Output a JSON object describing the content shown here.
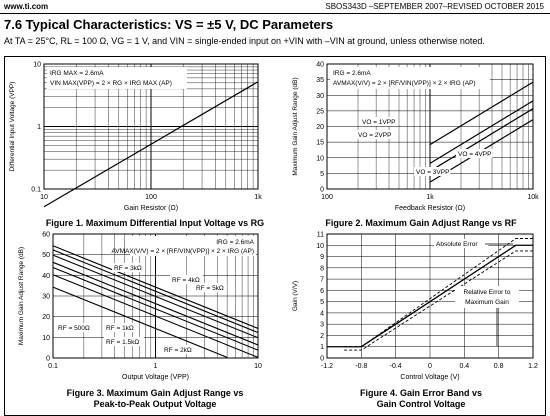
{
  "header": {
    "site": "www.ti.com",
    "doc": "SBOS343D –SEPTEMBER 2007–REVISED OCTOBER 2015"
  },
  "section": {
    "title": "7.6   Typical Characteristics: VS = ±5 V, DC Parameters",
    "conditions": "At TA = 25°C, RL = 100 Ω, VG = 1 V, and VIN = single-ended input on +VIN with –VIN at ground, unless otherwise noted."
  },
  "chart_data": [
    {
      "type": "line",
      "title": "Figure 1. Maximum Differential Input Voltage vs RG",
      "xlabel": "Gain Resistor (Ω)",
      "ylabel": "Differential Input Voltage (VPP)",
      "xscale": "log",
      "yscale": "log",
      "xlim": [
        10,
        1000
      ],
      "ylim": [
        0.1,
        10
      ],
      "xticks": [
        "10",
        "100",
        "1k"
      ],
      "yticks": [
        "10",
        "1",
        "0.1"
      ],
      "annotations": [
        "IRG MAX = 2.6mA",
        "VIN MAX(VPP) = 2 × RG × IRG MAX (AP)"
      ],
      "series": [
        {
          "x": [
            10,
            1000
          ],
          "y": [
            0.052,
            5.2
          ]
        }
      ]
    },
    {
      "type": "line",
      "title": "Figure 2. Maximum Gain Adjust Range vs RF",
      "xlabel": "Feedback Resistor (Ω)",
      "ylabel": "Maximum Gain Adjust Range (dB)",
      "xscale": "log",
      "xlim": [
        100,
        10000
      ],
      "ylim": [
        0,
        40
      ],
      "xticks": [
        "100",
        "1k",
        "10k"
      ],
      "yticks": [
        "40",
        "35",
        "30",
        "25",
        "20",
        "15",
        "10",
        "5",
        "0"
      ],
      "annotations": [
        "IRG = 2.6mA",
        "AVMAX(V/V) = 2 × [RF/VIN(VPP)] × 2 × IRG (AP)"
      ],
      "series": [
        {
          "name": "VO = 1VPP",
          "x": [
            1000,
            10000
          ],
          "y": [
            14.2,
            34.2
          ]
        },
        {
          "name": "VO = 2VPP",
          "x": [
            1000,
            10000
          ],
          "y": [
            8.2,
            28.2
          ]
        },
        {
          "name": "VO = 4VPP",
          "x": [
            1000,
            10000
          ],
          "y": [
            2.2,
            22.2
          ]
        },
        {
          "name": "VO = 3VPP",
          "x": [
            1000,
            10000
          ],
          "y": [
            5.7,
            25.7
          ]
        }
      ]
    },
    {
      "type": "line",
      "title": "Figure 3. Maximum Gain Adjust Range vs\nPeak-to-Peak Output Voltage",
      "xlabel": "Output Voltage (VPP)",
      "ylabel": "Maximum Gain Adjust Range (dB)",
      "xscale": "log",
      "xlim": [
        0.1,
        10
      ],
      "ylim": [
        0,
        60
      ],
      "xticks": [
        "0.1",
        "1",
        "10"
      ],
      "yticks": [
        "60",
        "50",
        "40",
        "30",
        "20",
        "10",
        "0"
      ],
      "annotations": [
        "IRG = 2.6mA",
        "AVMAX(V/V) = 2 × [RF/VIN(VPP)] × 2 × IRG (AP)"
      ],
      "series": [
        {
          "name": "RF = 5kΩ",
          "x": [
            0.1,
            10
          ],
          "y": [
            54.3,
            14.3
          ]
        },
        {
          "name": "RF = 4kΩ",
          "x": [
            0.1,
            10
          ],
          "y": [
            52.3,
            12.3
          ]
        },
        {
          "name": "RF = 3kΩ",
          "x": [
            0.1,
            10
          ],
          "y": [
            49.8,
            9.8
          ]
        },
        {
          "name": "RF = 2kΩ",
          "x": [
            0.1,
            10
          ],
          "y": [
            46.3,
            6.3
          ]
        },
        {
          "name": "RF = 1.5kΩ",
          "x": [
            0.1,
            10
          ],
          "y": [
            43.8,
            3.8
          ]
        },
        {
          "name": "RF = 1kΩ",
          "x": [
            0.1,
            10
          ],
          "y": [
            40.3,
            0.3
          ]
        },
        {
          "name": "RF = 500Ω",
          "x": [
            0.1,
            5
          ],
          "y": [
            34.3,
            0.3
          ]
        }
      ]
    },
    {
      "type": "line",
      "title": "Figure 4. Gain Error Band vs\nGain Control Voltage",
      "xlabel": "Control Voltage (V)",
      "ylabel": "Gain (V/V)",
      "xlim": [
        -1.2,
        1.2
      ],
      "ylim": [
        0,
        11
      ],
      "xticks": [
        "-1.2",
        "-0.8",
        "-0.4",
        "0",
        "0.4",
        "0.8",
        "1.2"
      ],
      "yticks": [
        "11",
        "10",
        "9",
        "8",
        "7",
        "6",
        "5",
        "4",
        "3",
        "2",
        "1",
        "0"
      ],
      "annotations": [
        "Absolute Error",
        "Relative Error to\nMaximum Gain"
      ],
      "series": [
        {
          "name": "gain",
          "x": [
            -1.2,
            -0.8,
            1.0,
            1.2
          ],
          "y": [
            1,
            1,
            10,
            10
          ]
        },
        {
          "name": "error-upper",
          "x": [
            -1.0,
            -0.8,
            1.0,
            1.2
          ],
          "y": [
            1.0,
            1.0,
            10.6,
            10.6
          ]
        },
        {
          "name": "error-lower",
          "x": [
            -1.0,
            -0.8,
            1.0,
            1.2
          ],
          "y": [
            0.7,
            0.7,
            9.5,
            9.5
          ]
        }
      ]
    }
  ]
}
